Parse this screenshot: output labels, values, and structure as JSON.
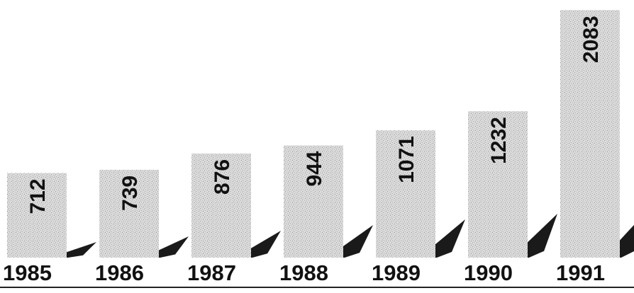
{
  "chart_data": {
    "type": "bar",
    "categories": [
      "1985",
      "1986",
      "1987",
      "1988",
      "1989",
      "1990",
      "1991"
    ],
    "values": [
      712,
      739,
      876,
      944,
      1071,
      1232,
      2083
    ],
    "title": "",
    "xlabel": "",
    "ylabel": "",
    "ylim": [
      0,
      2150
    ],
    "grid": false,
    "legend": "none",
    "colors": {
      "bar_fill": "#d6d6d6",
      "bar_speckle": "#9a9a9a",
      "wedge": "#1a1a1a",
      "text": "#111111",
      "baseline": "#222222"
    }
  }
}
